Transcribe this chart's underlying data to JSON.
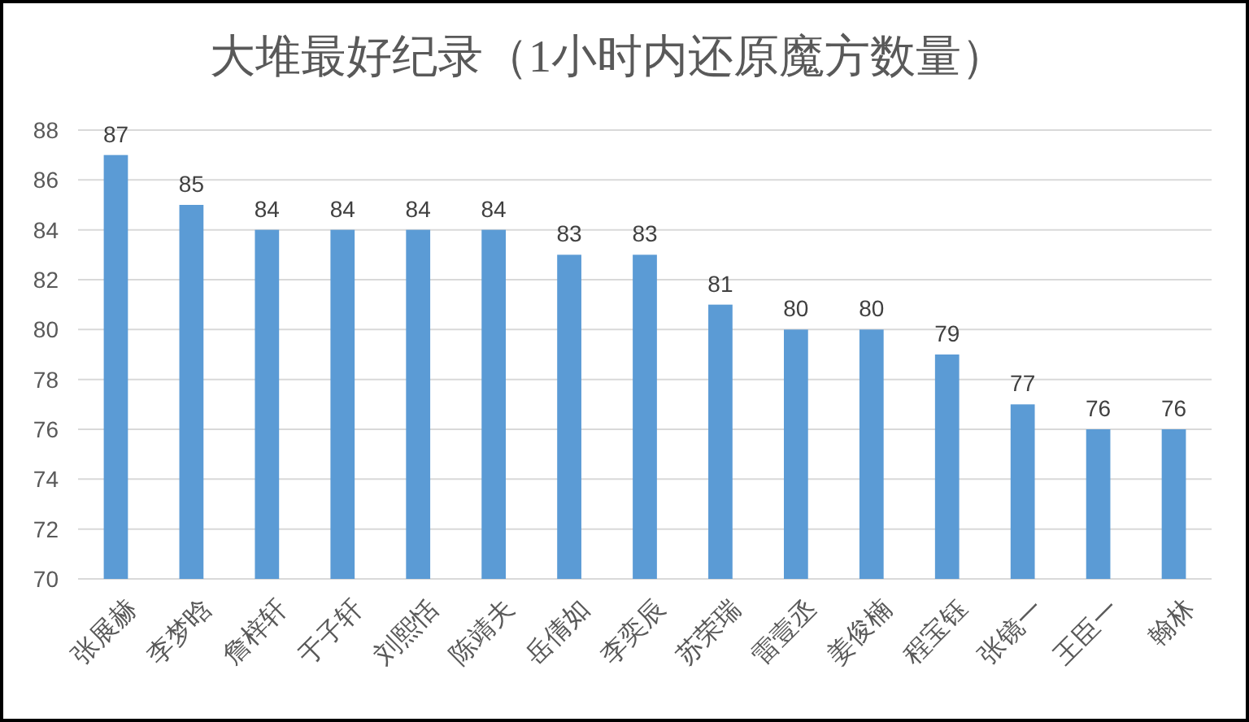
{
  "chart_data": {
    "type": "bar",
    "title": "大堆最好纪录（1小时内还原魔方数量）",
    "categories": [
      "张展赫",
      "李梦晗",
      "詹梓轩",
      "于子轩",
      "刘熙恬",
      "陈靖夫",
      "岳倩如",
      "李奕辰",
      "苏荣瑞",
      "雷壹丞",
      "姜俊楠",
      "程宝钰",
      "张镜一",
      "王臣一",
      "翰林"
    ],
    "values": [
      87,
      85,
      84,
      84,
      84,
      84,
      83,
      83,
      81,
      80,
      80,
      79,
      77,
      76,
      76
    ],
    "color": "#5b9bd5",
    "ylim": [
      70,
      88
    ],
    "yticks": [
      70,
      72,
      74,
      76,
      78,
      80,
      82,
      84,
      86,
      88
    ],
    "grid": "y",
    "data_labels": true
  }
}
